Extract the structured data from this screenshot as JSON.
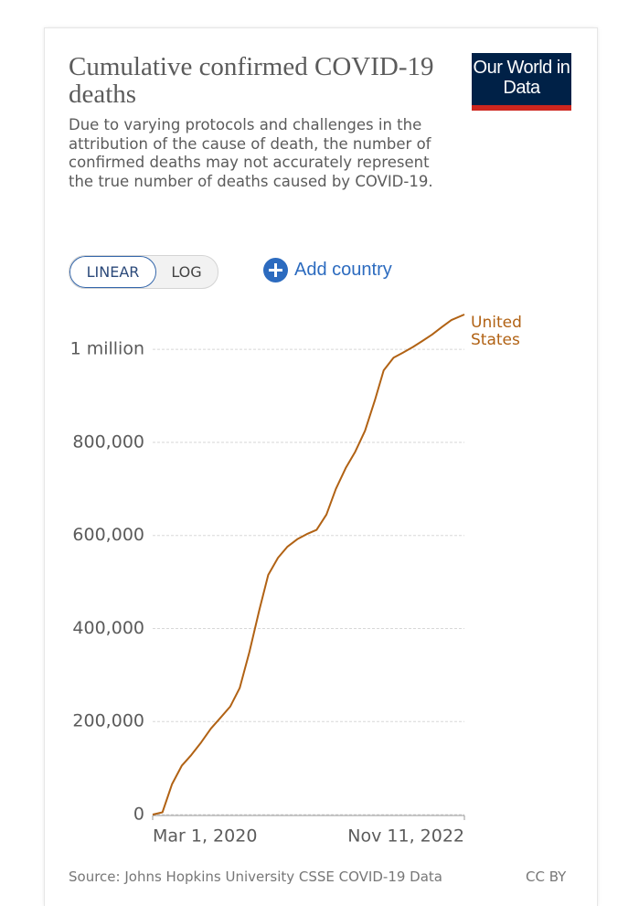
{
  "logo": "Our World in Data",
  "controls": {
    "linear": "LINEAR",
    "log": "LOG",
    "add": "Add country"
  },
  "source": "Source: Johns Hopkins University CSSE COVID-19 Data",
  "license": "CC BY",
  "chart_data": {
    "type": "line",
    "title": "Cumulative confirmed COVID-19 deaths",
    "subtitle": "Due to varying protocols and challenges in the attribution of the cause of death, the number of confirmed deaths may not accurately represent the true number of deaths caused by COVID-19.",
    "x": [
      "2020-03-01",
      "2020-04-01",
      "2020-05-01",
      "2020-06-01",
      "2020-07-01",
      "2020-08-01",
      "2020-09-01",
      "2020-10-01",
      "2020-11-01",
      "2020-12-01",
      "2021-01-01",
      "2021-02-01",
      "2021-03-01",
      "2021-04-01",
      "2021-05-01",
      "2021-06-01",
      "2021-07-01",
      "2021-08-01",
      "2021-09-01",
      "2021-10-01",
      "2021-11-01",
      "2021-12-01",
      "2022-01-01",
      "2022-02-01",
      "2022-03-01",
      "2022-04-01",
      "2022-05-01",
      "2022-06-01",
      "2022-07-01",
      "2022-08-01",
      "2022-09-01",
      "2022-10-01",
      "2022-11-11"
    ],
    "series": [
      {
        "name": "United States",
        "color": "#b16214",
        "values": [
          0,
          5000,
          65000,
          105000,
          128000,
          155000,
          185000,
          208000,
          232000,
          272000,
          350000,
          440000,
          515000,
          552000,
          576000,
          592000,
          603000,
          612000,
          645000,
          700000,
          745000,
          780000,
          825000,
          890000,
          955000,
          982000,
          993000,
          1005000,
          1018000,
          1032000,
          1048000,
          1063000,
          1075000
        ]
      }
    ],
    "xlim": [
      "2020-03-01",
      "2022-11-11"
    ],
    "xticks": [
      {
        "value": "2020-03-01",
        "label": "Mar 1, 2020"
      },
      {
        "value": "2022-11-11",
        "label": "Nov 11, 2022"
      }
    ],
    "ylim": [
      0,
      1075000
    ],
    "yticks": [
      0,
      {
        "value": 200000,
        "label": "200,000"
      },
      {
        "value": 400000,
        "label": "400,000"
      },
      {
        "value": 600000,
        "label": "600,000"
      },
      {
        "value": 800000,
        "label": "800,000"
      },
      {
        "value": 1000000,
        "label": "1 million"
      }
    ],
    "grid": true,
    "log_scale": false
  }
}
